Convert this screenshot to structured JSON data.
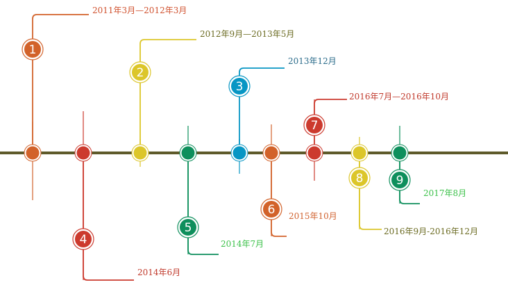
{
  "axis_color": "#5e5a2a",
  "events": [
    {
      "number": "1",
      "label": "2011年3月—2012年3月",
      "color": "#d2622a",
      "text_color": "#d0522f",
      "side": "above"
    },
    {
      "number": "2",
      "label": "2012年9月—2013年5月",
      "color": "#dcc62a",
      "text_color": "#6b6b22",
      "side": "above"
    },
    {
      "number": "3",
      "label": "2013年12月",
      "color": "#0796c4",
      "text_color": "#2a6b8a",
      "side": "above"
    },
    {
      "number": "4",
      "label": "2014年6月",
      "color": "#cc3a2e",
      "text_color": "#c0392b",
      "side": "below"
    },
    {
      "number": "5",
      "label": "2014年7月",
      "color": "#0e8f5c",
      "text_color": "#3cc14a",
      "side": "below"
    },
    {
      "number": "6",
      "label": "2015年10月",
      "color": "#d2622a",
      "text_color": "#d0622f",
      "side": "below"
    },
    {
      "number": "7",
      "label": "2016年7月—2016年10月",
      "color": "#cc3a2e",
      "text_color": "#c0392b",
      "side": "above"
    },
    {
      "number": "8",
      "label": "2016年9月-2016年12月",
      "color": "#dcc62a",
      "text_color": "#6b6b22",
      "side": "below"
    },
    {
      "number": "9",
      "label": "2017年8月",
      "color": "#0e8f5c",
      "text_color": "#3cc14a",
      "side": "below"
    }
  ]
}
